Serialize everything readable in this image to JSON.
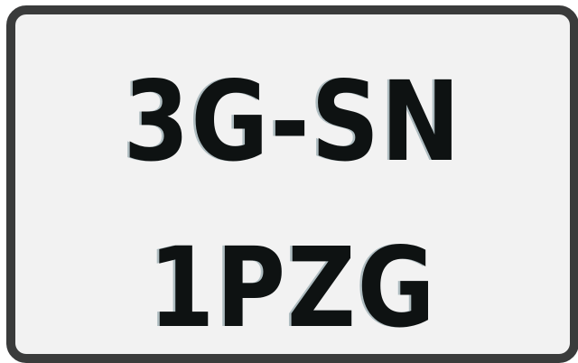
{
  "plate": {
    "line1": "3G-SN",
    "line2": "1PZG"
  }
}
